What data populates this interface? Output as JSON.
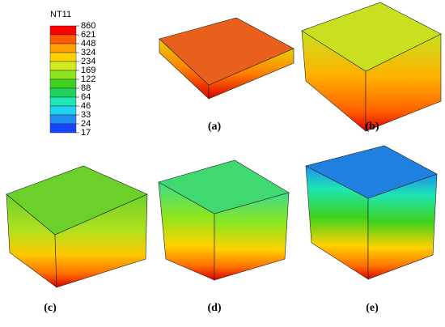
{
  "legend": {
    "title": "NT11",
    "labels": [
      860,
      621,
      448,
      324,
      234,
      169,
      122,
      88,
      64,
      46,
      33,
      24,
      17
    ],
    "colors": [
      "#ff0000",
      "#ff5a00",
      "#ffa000",
      "#ffd200",
      "#d2ec1e",
      "#8ce61e",
      "#3cd21e",
      "#1ed25a",
      "#1ee6b4",
      "#1ed2f0",
      "#1e8cf0",
      "#1446ff",
      "#0000e6"
    ]
  },
  "panels": [
    {
      "label": "(a)"
    },
    {
      "label": "(b)"
    },
    {
      "label": "(c)"
    },
    {
      "label": "(d)"
    },
    {
      "label": "(e)"
    }
  ]
}
